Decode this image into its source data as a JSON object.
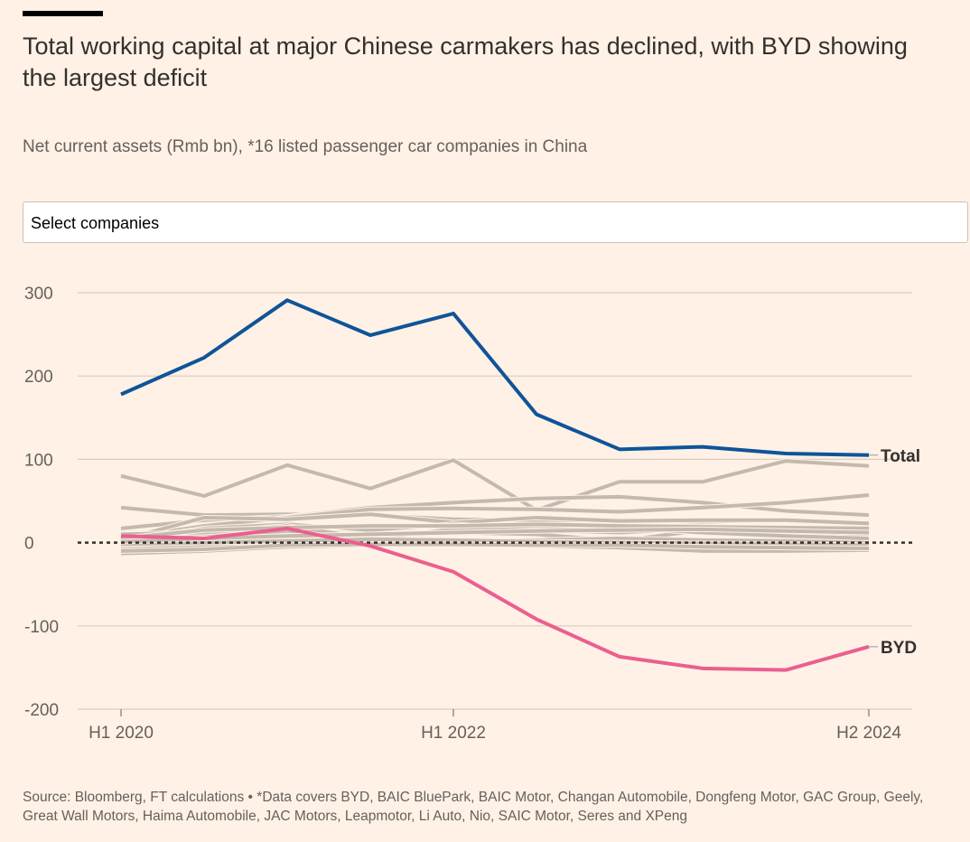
{
  "header": {
    "title": "Total working capital at major Chinese carmakers has declined, with BYD showing the largest deficit",
    "subtitle": "Net current assets (Rmb bn), *16 listed passenger car companies in China"
  },
  "controls": {
    "select_label": "Select companies"
  },
  "footer": {
    "source": "Source: Bloomberg, FT calculations • *Data covers BYD, BAIC BluePark, BAIC Motor, Changan Automobile, Dongfeng Motor, GAC Group, Geely, Great Wall Motors, Haima Automobile, JAC Motors, Leapmotor, Li Auto, Nio, SAIC Motor, Seres and XPeng"
  },
  "chart_data": {
    "type": "line",
    "title": "Total working capital at major Chinese carmakers has declined, with BYD showing the largest deficit",
    "subtitle": "Net current assets (Rmb bn), *16 listed passenger car companies in China",
    "x": [
      "H1 2020",
      "H2 2020",
      "H1 2021",
      "H2 2021",
      "H1 2022",
      "H2 2022",
      "H1 2023",
      "H2 2023",
      "H1 2024",
      "H2 2024"
    ],
    "xticks": [
      "H1 2020",
      "H1 2022",
      "H2 2024"
    ],
    "yticks": [
      300,
      200,
      100,
      0,
      -100,
      -200
    ],
    "ylim": [
      -200,
      300
    ],
    "grid": true,
    "zero_line": "dotted",
    "colors": {
      "total": "#0f5499",
      "byd": "#eb5f8f",
      "other": "#c4b9ae"
    },
    "series": [
      {
        "name": "Total",
        "highlight": "total",
        "values": [
          178,
          222,
          291,
          249,
          275,
          154,
          112,
          115,
          107,
          105
        ]
      },
      {
        "name": "BYD",
        "highlight": "byd",
        "values": [
          8,
          5,
          17,
          -4,
          -35,
          -92,
          -137,
          -151,
          -153,
          -125
        ]
      },
      {
        "values": [
          80,
          56,
          93,
          65,
          99,
          39,
          73,
          73,
          98,
          92
        ]
      },
      {
        "values": [
          42,
          33,
          34,
          33,
          28,
          27,
          27,
          25,
          27,
          22
        ]
      },
      {
        "values": [
          17,
          27,
          31,
          42,
          48,
          53,
          55,
          48,
          38,
          33
        ]
      },
      {
        "values": [
          5,
          20,
          30,
          40,
          41,
          40,
          37,
          42,
          48,
          57
        ]
      },
      {
        "values": [
          3,
          30,
          28,
          34,
          24,
          30,
          26,
          27,
          27,
          23
        ]
      },
      {
        "values": [
          2,
          17,
          22,
          15,
          22,
          15,
          12,
          17,
          12,
          10
        ]
      },
      {
        "values": [
          0,
          8,
          14,
          7,
          12,
          10,
          2,
          15,
          8,
          3
        ]
      },
      {
        "values": [
          -5,
          -3,
          -1,
          -1,
          0,
          -3,
          -5,
          -10,
          -9,
          -8
        ]
      },
      {
        "values": [
          -13,
          -10,
          -5,
          -3,
          -1,
          -4,
          -6,
          -10,
          -10,
          -9
        ]
      },
      {
        "values": [
          -8,
          -5,
          0,
          0,
          2,
          3,
          5,
          3,
          2,
          0
        ]
      },
      {
        "values": [
          10,
          12,
          20,
          5,
          16,
          20,
          18,
          12,
          8,
          5
        ]
      },
      {
        "values": [
          5,
          15,
          18,
          20,
          20,
          22,
          20,
          19,
          18,
          17
        ]
      },
      {
        "values": [
          -2,
          0,
          2,
          4,
          3,
          1,
          0,
          -1,
          -2,
          -3
        ]
      },
      {
        "values": [
          1,
          5,
          8,
          10,
          12,
          14,
          15,
          16,
          14,
          12
        ]
      },
      {
        "values": [
          -10,
          -8,
          -3,
          -2,
          -2,
          -3,
          -3,
          -5,
          -6,
          -7
        ]
      }
    ]
  }
}
